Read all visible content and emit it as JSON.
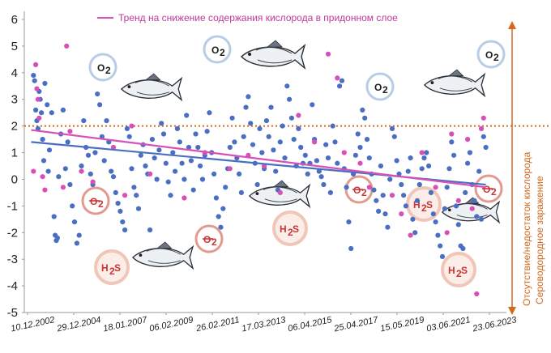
{
  "chart_data": {
    "type": "scatter",
    "title": "",
    "xlabel": "",
    "ylabel": "",
    "ylim": [
      -5,
      6
    ],
    "yticks": [
      6,
      5,
      4,
      3,
      2,
      1,
      0,
      -1,
      -2,
      -3,
      -4,
      -5
    ],
    "xticks": [
      "10.12.2002",
      "29.12.2004",
      "18.01.2007",
      "06.02.2009",
      "26.02.2011",
      "17.03.2013",
      "06.04.2015",
      "25.04.2017",
      "15.05.2019",
      "03.06.2021",
      "23.06.2023"
    ],
    "threshold": {
      "y": 2,
      "style": "dotted",
      "color": "#d2691e"
    },
    "series": [
      {
        "color": "#4a6fc2",
        "points": [
          [
            2002.9,
            3.9
          ],
          [
            2002.95,
            3.7
          ],
          [
            2003.0,
            2.6
          ],
          [
            2003.05,
            2.2
          ],
          [
            2003.1,
            1.9
          ],
          [
            2003.15,
            3.3
          ],
          [
            2003.2,
            3.0
          ],
          [
            2003.25,
            2.5
          ],
          [
            2003.3,
            1.5
          ],
          [
            2003.35,
            0.7
          ],
          [
            2003.4,
            3.6
          ],
          [
            2003.5,
            2.8
          ],
          [
            2003.55,
            0.3
          ],
          [
            2003.6,
            1.1
          ],
          [
            2003.7,
            2.5
          ],
          [
            2003.8,
            -1.4
          ],
          [
            2003.85,
            -2.1
          ],
          [
            2003.9,
            -2.3
          ],
          [
            2003.95,
            -2.2
          ],
          [
            2004.0,
            0.1
          ],
          [
            2004.1,
            1.7
          ],
          [
            2004.2,
            2.6
          ],
          [
            2004.3,
            0.4
          ],
          [
            2004.4,
            1.4
          ],
          [
            2004.5,
            -0.2
          ],
          [
            2004.6,
            -1.0
          ],
          [
            2004.7,
            -1.6
          ],
          [
            2004.8,
            -2.4
          ],
          [
            2004.9,
            -2.1
          ],
          [
            2005.0,
            0.5
          ],
          [
            2005.1,
            2.2
          ],
          [
            2005.2,
            1.2
          ],
          [
            2005.3,
            0.9
          ],
          [
            2005.4,
            0.2
          ],
          [
            2005.5,
            -0.2
          ],
          [
            2005.6,
            1.0
          ],
          [
            2005.7,
            3.2
          ],
          [
            2005.8,
            2.8
          ],
          [
            2005.9,
            1.6
          ],
          [
            2006.0,
            0.7
          ],
          [
            2006.1,
            2.2
          ],
          [
            2006.2,
            1.4
          ],
          [
            2006.3,
            0.3
          ],
          [
            2006.4,
            0.1
          ],
          [
            2006.5,
            -0.5
          ],
          [
            2006.6,
            -0.9
          ],
          [
            2006.7,
            -1.2
          ],
          [
            2006.8,
            -1.6
          ],
          [
            2006.9,
            -1.9
          ],
          [
            2007.0,
            1.9
          ],
          [
            2007.1,
            1.6
          ],
          [
            2007.2,
            0.4
          ],
          [
            2007.3,
            -0.3
          ],
          [
            2007.4,
            -0.6
          ],
          [
            2007.5,
            -1.1
          ],
          [
            2007.6,
            0.9
          ],
          [
            2007.7,
            1.3
          ],
          [
            2007.8,
            0.5
          ],
          [
            2007.9,
            0.2
          ],
          [
            2008.0,
            -1.9
          ],
          [
            2008.1,
            1.5
          ],
          [
            2008.2,
            0.8
          ],
          [
            2008.3,
            0.0
          ],
          [
            2008.4,
            1.1
          ],
          [
            2008.5,
            2.1
          ],
          [
            2008.6,
            1.7
          ],
          [
            2008.7,
            0.6
          ],
          [
            2008.8,
            -0.1
          ],
          [
            2008.9,
            -0.6
          ],
          [
            2009.0,
            1.0
          ],
          [
            2009.1,
            0.3
          ],
          [
            2009.2,
            1.9
          ],
          [
            2009.3,
            1.4
          ],
          [
            2009.4,
            0.6
          ],
          [
            2009.5,
            0.0
          ],
          [
            2009.6,
            2.4
          ],
          [
            2009.7,
            1.2
          ],
          [
            2009.8,
            0.7
          ],
          [
            2009.9,
            -0.4
          ],
          [
            2010.0,
            1.7
          ],
          [
            2010.1,
            1.2
          ],
          [
            2010.2,
            0.5
          ],
          [
            2010.3,
            0.0
          ],
          [
            2010.4,
            0.9
          ],
          [
            2010.5,
            1.8
          ],
          [
            2010.6,
            2.5
          ],
          [
            2010.7,
            1.0
          ],
          [
            2010.8,
            0.2
          ],
          [
            2010.9,
            -0.7
          ],
          [
            2011.0,
            -1.4
          ],
          [
            2011.1,
            -1.8
          ],
          [
            2011.2,
            -1.1
          ],
          [
            2011.3,
            -0.3
          ],
          [
            2011.4,
            0.4
          ],
          [
            2011.5,
            1.2
          ],
          [
            2011.6,
            2.3
          ],
          [
            2011.7,
            1.4
          ],
          [
            2011.8,
            0.8
          ],
          [
            2011.9,
            0.2
          ],
          [
            2012.0,
            -0.5
          ],
          [
            2012.1,
            1.6
          ],
          [
            2012.2,
            2.7
          ],
          [
            2012.3,
            3.1
          ],
          [
            2012.4,
            2.1
          ],
          [
            2012.5,
            1.3
          ],
          [
            2012.6,
            0.6
          ],
          [
            2012.7,
            -0.2
          ],
          [
            2012.8,
            1.9
          ],
          [
            2012.9,
            1.0
          ],
          [
            2013.0,
            0.4
          ],
          [
            2013.1,
            2.2
          ],
          [
            2013.2,
            1.6
          ],
          [
            2013.3,
            2.7
          ],
          [
            2013.4,
            1.1
          ],
          [
            2013.5,
            0.3
          ],
          [
            2013.6,
            -0.4
          ],
          [
            2013.7,
            1.4
          ],
          [
            2013.8,
            2.0
          ],
          [
            2013.9,
            0.8
          ],
          [
            2014.0,
            3.5
          ],
          [
            2014.1,
            3.0
          ],
          [
            2014.2,
            2.3
          ],
          [
            2014.3,
            1.5
          ],
          [
            2014.4,
            0.5
          ],
          [
            2014.5,
            1.9
          ],
          [
            2014.6,
            1.2
          ],
          [
            2014.7,
            0.6
          ],
          [
            2014.8,
            0.9
          ],
          [
            2014.9,
            0.2
          ],
          [
            2015.0,
            0.6
          ],
          [
            2015.1,
            2.8
          ],
          [
            2015.2,
            1.5
          ],
          [
            2015.3,
            0.7
          ],
          [
            2015.4,
            0.3
          ],
          [
            2015.5,
            0.1
          ],
          [
            2015.6,
            -0.2
          ],
          [
            2015.7,
            1.3
          ],
          [
            2015.8,
            0.8
          ],
          [
            2015.9,
            -0.5
          ],
          [
            2016.0,
            2.0
          ],
          [
            2016.1,
            1.4
          ],
          [
            2016.2,
            0.6
          ],
          [
            2016.3,
            3.5
          ],
          [
            2016.4,
            3.7
          ],
          [
            2016.5,
            0.4
          ],
          [
            2016.6,
            -0.3
          ],
          [
            2016.7,
            -1.6
          ],
          [
            2016.8,
            -2.6
          ],
          [
            2016.9,
            0.2
          ],
          [
            2017.0,
            0.9
          ],
          [
            2017.1,
            1.7
          ],
          [
            2017.2,
            1.2
          ],
          [
            2017.3,
            2.6
          ],
          [
            2017.4,
            2.3
          ],
          [
            2017.5,
            1.5
          ],
          [
            2017.6,
            0.8
          ],
          [
            2017.7,
            0.2
          ],
          [
            2017.8,
            -0.4
          ],
          [
            2017.9,
            -0.8
          ],
          [
            2018.0,
            -1.2
          ],
          [
            2018.1,
            0.5
          ],
          [
            2018.2,
            -0.6
          ],
          [
            2018.3,
            -1.3
          ],
          [
            2018.4,
            -1.8
          ],
          [
            2018.5,
            0.0
          ],
          [
            2018.6,
            1.9
          ],
          [
            2018.7,
            1.6
          ],
          [
            2018.8,
            0.7
          ],
          [
            2018.9,
            0.2
          ],
          [
            2019.0,
            -0.2
          ],
          [
            2019.1,
            -0.6
          ],
          [
            2019.2,
            -1.0
          ],
          [
            2019.3,
            0.3
          ],
          [
            2019.4,
            0.8
          ],
          [
            2019.5,
            -1.5
          ],
          [
            2019.6,
            -2.0
          ],
          [
            2019.7,
            -0.8
          ],
          [
            2019.8,
            -0.2
          ],
          [
            2019.9,
            0.4
          ],
          [
            2020.0,
            0.8
          ],
          [
            2020.1,
            1.0
          ],
          [
            2020.2,
            0.5
          ],
          [
            2020.3,
            -0.5
          ],
          [
            2020.4,
            -1.3
          ],
          [
            2020.5,
            -1.6
          ],
          [
            2020.6,
            -2.1
          ],
          [
            2020.7,
            -2.5
          ],
          [
            2020.8,
            -2.9
          ],
          [
            2020.9,
            -1.1
          ],
          [
            2021.0,
            -0.3
          ],
          [
            2021.1,
            0.4
          ],
          [
            2021.2,
            1.4
          ],
          [
            2021.3,
            0.9
          ],
          [
            2021.4,
            -1.0
          ],
          [
            2021.5,
            -1.7
          ],
          [
            2021.6,
            -2.5
          ],
          [
            2021.7,
            -2.6
          ],
          [
            2021.8,
            -0.5
          ],
          [
            2021.9,
            0.6
          ],
          [
            2022.0,
            1.0
          ],
          [
            2022.1,
            -0.2
          ],
          [
            2022.2,
            -0.8
          ],
          [
            2022.3,
            -1.4
          ],
          [
            2022.4,
            0.3
          ],
          [
            2022.5,
            -1.5
          ],
          [
            2022.6,
            1.6
          ],
          [
            2022.7,
            1.2
          ]
        ],
        "trend": [
          [
            2002.8,
            1.4
          ],
          [
            2022.7,
            -0.2
          ]
        ]
      },
      {
        "name": "Тренд на снижение содержания кислорода в придонном слое",
        "color": "#d94fb8",
        "points": [
          [
            2003.0,
            4.3
          ],
          [
            2003.05,
            3.4
          ],
          [
            2003.1,
            3.0
          ],
          [
            2003.15,
            2.3
          ],
          [
            2002.9,
            0.3
          ],
          [
            2003.3,
            0.1
          ],
          [
            2003.4,
            -0.4
          ],
          [
            2004.2,
            -0.3
          ],
          [
            2004.35,
            5.0
          ],
          [
            2004.5,
            1.8
          ],
          [
            2005.0,
            0.3
          ],
          [
            2005.5,
            -0.1
          ],
          [
            2006.4,
            1.2
          ],
          [
            2006.9,
            -0.6
          ],
          [
            2007.2,
            2.0
          ],
          [
            2008.0,
            0.2
          ],
          [
            2009.5,
            -0.7
          ],
          [
            2010.4,
            1.0
          ],
          [
            2011.5,
            0.4
          ],
          [
            2012.3,
            0.9
          ],
          [
            2013.0,
            0.5
          ],
          [
            2013.7,
            -0.5
          ],
          [
            2014.5,
            2.4
          ],
          [
            2015.2,
            1.4
          ],
          [
            2015.8,
            4.7
          ],
          [
            2016.2,
            3.8
          ],
          [
            2016.5,
            1.0
          ],
          [
            2017.2,
            0.6
          ],
          [
            2017.6,
            -0.3
          ],
          [
            2018.6,
            -0.6
          ],
          [
            2019.0,
            -1.3
          ],
          [
            2019.4,
            -2.1
          ],
          [
            2019.9,
            1.0
          ],
          [
            2020.5,
            -0.3
          ],
          [
            2021.0,
            -2.0
          ],
          [
            2021.2,
            1.7
          ],
          [
            2021.5,
            -0.8
          ],
          [
            2021.9,
            1.5
          ],
          [
            2022.1,
            -1.1
          ],
          [
            2022.3,
            -4.3
          ],
          [
            2022.5,
            1.9
          ],
          [
            2022.6,
            2.3
          ]
        ],
        "trend": [
          [
            2002.8,
            1.85
          ],
          [
            2022.7,
            -0.3
          ]
        ]
      }
    ],
    "annotations": {
      "legend_label": "Тренд на снижение содержания кислорода в придонном слое",
      "side_label_1": "Отсутствие/недостаток кислорода",
      "side_label_2": "Сероводородное заражение",
      "o2_label": "O",
      "o2_sub": "2",
      "h2s_h": "H",
      "h2s_sub": "2",
      "h2s_s": "S"
    }
  },
  "colors": {
    "blue": "#4a6fc2",
    "magenta": "#d94fb8",
    "orange": "#d2691e",
    "o2_ring": "#b9cce6",
    "o2_ring_red": "#e39a8e",
    "h2s_ring": "#efc6b8",
    "h2s_fill": "#fbeee8",
    "h2s_text": "#cc3333"
  }
}
